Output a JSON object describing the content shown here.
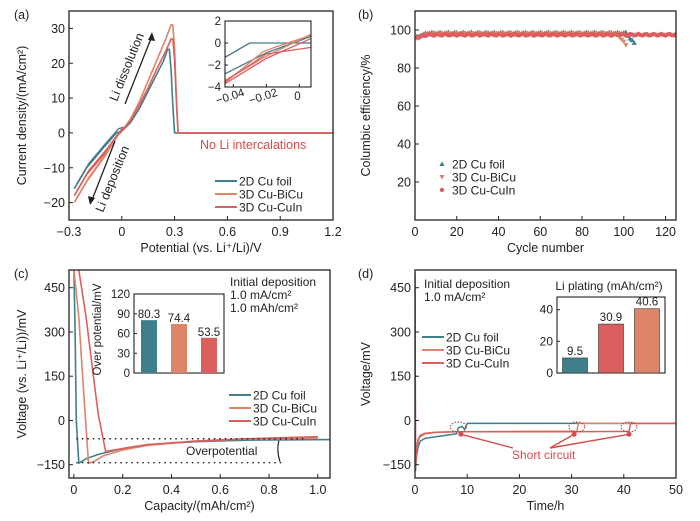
{
  "colors": {
    "cu_foil": "#3f7f8c",
    "bicu": "#de8468",
    "cuin": "#dc5f60",
    "text": "#222222",
    "annot_red": "#d94a4a"
  },
  "chart_data": [
    {
      "panel": "(a)",
      "type": "line",
      "xlabel": "Potential (vs. Li⁺/Li)/V",
      "ylabel": "Current density/(mA/cm²)",
      "xlim": [
        -0.3,
        1.2
      ],
      "ylim": [
        -25,
        35
      ],
      "xticks": [
        "−0.3",
        "0",
        "0.3",
        "0.6",
        "0.9",
        "1.2"
      ],
      "yticks": [
        "−20",
        "−10",
        "0",
        "10",
        "20",
        "30"
      ],
      "xtick_values": [
        -0.3,
        0,
        0.3,
        0.6,
        0.9,
        1.2
      ],
      "ytick_values": [
        -20,
        -10,
        0,
        10,
        20,
        30
      ],
      "annotations": [
        "Li dissolution",
        "Li deposition",
        "No Li intercalations"
      ],
      "legend": {
        "position": "bottom-right",
        "entries": [
          "2D Cu foil",
          "3D Cu-BiCu",
          "3D Cu-CuIn"
        ]
      },
      "series": [
        {
          "name": "2D Cu foil",
          "key": "cu_foil",
          "x": [
            -0.27,
            -0.2,
            -0.1,
            -0.03,
            0.0,
            0.05,
            0.1,
            0.15,
            0.2,
            0.24,
            0.26,
            0.27,
            0.28,
            0.29,
            0.3,
            0.5,
            1.2
          ],
          "y": [
            -16,
            -10,
            -4,
            0,
            0.5,
            3,
            7,
            12,
            17,
            21,
            24,
            24,
            18,
            8,
            0,
            0,
            0
          ]
        },
        {
          "name": "3D Cu-BiCu",
          "key": "bicu",
          "x": [
            -0.27,
            -0.2,
            -0.1,
            -0.02,
            0.0,
            0.05,
            0.1,
            0.15,
            0.2,
            0.25,
            0.28,
            0.29,
            0.3,
            0.31,
            0.32,
            0.5,
            1.2
          ],
          "y": [
            -20,
            -14,
            -7,
            -0.5,
            0.5,
            4,
            9,
            15,
            21,
            27,
            31,
            31,
            24,
            10,
            0,
            0,
            0
          ]
        },
        {
          "name": "3D Cu-CuIn",
          "key": "cuin",
          "x": [
            -0.27,
            -0.2,
            -0.1,
            -0.02,
            0.0,
            0.05,
            0.1,
            0.15,
            0.2,
            0.25,
            0.28,
            0.29,
            0.3,
            0.31,
            0.32,
            0.5,
            1.2
          ],
          "y": [
            -18,
            -12,
            -6,
            -0.5,
            0.5,
            3.5,
            8,
            13,
            18.5,
            23.5,
            27,
            27,
            21,
            9,
            0,
            0,
            0
          ]
        }
      ],
      "inset": {
        "type": "line",
        "xlim": [
          -0.045,
          0.007
        ],
        "ylim": [
          -4,
          2
        ],
        "xticks": [
          "−0.04",
          "−0.02",
          "0"
        ],
        "xtick_values": [
          -0.04,
          -0.02,
          0
        ],
        "yticks": [
          "−4",
          "−2",
          "0",
          "2"
        ],
        "ytick_values": [
          -4,
          -2,
          0,
          2
        ],
        "series": [
          {
            "key": "cu_foil",
            "x": [
              -0.045,
              -0.03,
              0.007
            ],
            "y": [
              -1.3,
              0,
              0
            ]
          },
          {
            "key": "cu_foil",
            "x": [
              -0.045,
              -0.02,
              0.007
            ],
            "y": [
              -2.8,
              -0.9,
              0.6
            ]
          },
          {
            "key": "bicu",
            "x": [
              -0.045,
              -0.02,
              0.007
            ],
            "y": [
              -3.4,
              -1.2,
              0.8
            ]
          },
          {
            "key": "bicu",
            "x": [
              -0.045,
              -0.022,
              -0.015,
              0.007
            ],
            "y": [
              -3.6,
              -0.8,
              -0.4,
              0.7
            ]
          },
          {
            "key": "cuin",
            "x": [
              -0.045,
              -0.02,
              0.007
            ],
            "y": [
              -3.7,
              -1.4,
              0.4
            ]
          },
          {
            "key": "cuin",
            "x": [
              -0.045,
              -0.02,
              0.007
            ],
            "y": [
              -3.5,
              -1.0,
              -0.4
            ]
          }
        ]
      }
    },
    {
      "panel": "(b)",
      "type": "scatter",
      "xlabel": "Cycle number",
      "ylabel": "Columbic efficiency/%",
      "xlim": [
        0,
        125
      ],
      "ylim": [
        0,
        110
      ],
      "xticks": [
        "0",
        "20",
        "40",
        "60",
        "80",
        "100",
        "120"
      ],
      "xtick_values": [
        0,
        20,
        40,
        60,
        80,
        100,
        120
      ],
      "yticks": [
        "20",
        "40",
        "60",
        "80",
        "100"
      ],
      "ytick_values": [
        20,
        40,
        60,
        80,
        100
      ],
      "legend": {
        "position": "bottom-left",
        "entries": [
          "2D Cu foil",
          "3D Cu-BiCu",
          "3D Cu-CuIn"
        ],
        "markers": [
          "triangle-up",
          "triangle-down",
          "star"
        ]
      },
      "series": [
        {
          "name": "2D Cu foil",
          "key": "cu_foil",
          "marker": "triangle-up",
          "cycles": [
            1,
            105
          ],
          "ce_typical": 98.5,
          "ce_start": 96,
          "ce_end": 93
        },
        {
          "name": "3D Cu-BiCu",
          "key": "bicu",
          "marker": "triangle-down",
          "cycles": [
            1,
            101
          ],
          "ce_typical": 98,
          "ce_start": 95,
          "ce_end": 92
        },
        {
          "name": "3D Cu-CuIn",
          "key": "cuin",
          "marker": "star",
          "cycles": [
            1,
            125
          ],
          "ce_typical": 97.5,
          "ce_start": 96,
          "ce_end": 96.5
        }
      ]
    },
    {
      "panel": "(c)",
      "type": "line",
      "xlabel": "Capacity/(mAh/cm²)",
      "ylabel": "Voltage (vs. Li⁺/Li))/mV",
      "xlim": [
        -0.02,
        1.05
      ],
      "ylim": [
        -195,
        510
      ],
      "xticks": [
        "0",
        "0.2",
        "0.4",
        "0.6",
        "0.8",
        "1.0"
      ],
      "xtick_values": [
        0,
        0.2,
        0.4,
        0.6,
        0.8,
        1.0
      ],
      "yticks": [
        "−150",
        "0",
        "150",
        "300",
        "450"
      ],
      "ytick_values": [
        -150,
        0,
        150,
        300,
        450
      ],
      "annotations": [
        "Initial deposition",
        "1.0 mA/cm²",
        "1.0 mAh/cm²",
        "Overpotential"
      ],
      "legend": {
        "position": "center-right",
        "entries": [
          "2D Cu foil",
          "3D Cu-BiCu",
          "3D Cu-CuIn"
        ]
      },
      "series": [
        {
          "name": "2D Cu foil",
          "key": "cu_foil",
          "x": [
            0.0,
            0.005,
            0.01,
            0.02,
            0.05,
            0.1,
            0.2,
            0.3,
            0.5,
            0.7,
            1.05
          ],
          "y": [
            510,
            300,
            0,
            -145,
            -130,
            -115,
            -95,
            -82,
            -72,
            -67,
            -65
          ]
        },
        {
          "name": "3D Cu-BiCu",
          "key": "bicu",
          "x": [
            0.0,
            0.02,
            0.04,
            0.06,
            0.08,
            0.12,
            0.2,
            0.3,
            0.5,
            0.7,
            1.0
          ],
          "y": [
            510,
            350,
            100,
            -145,
            -140,
            -120,
            -100,
            -85,
            -70,
            -63,
            -60
          ]
        },
        {
          "name": "3D Cu-CuIn",
          "key": "cuin",
          "x": [
            0.02,
            0.05,
            0.08,
            0.1,
            0.13,
            0.2,
            0.3,
            0.5,
            0.7,
            1.0
          ],
          "y": [
            510,
            350,
            150,
            20,
            -105,
            -95,
            -82,
            -70,
            -62,
            -55
          ]
        }
      ],
      "overpotential_levels": [
        -62,
        -143
      ],
      "inset": {
        "type": "bar",
        "ylabel": "Over potential/mV",
        "ylim": [
          0,
          120
        ],
        "yticks": [
          "0",
          "30",
          "60",
          "90",
          "120"
        ],
        "ytick_values": [
          0,
          30,
          60,
          90,
          120
        ],
        "categories": [
          "2D Cu foil",
          "3D Cu-BiCu",
          "3D Cu-CuIn"
        ],
        "values": [
          80.3,
          74.4,
          53.5
        ],
        "labels": [
          "80.3",
          "74.4",
          "53.5"
        ],
        "keys": [
          "cu_foil",
          "bicu",
          "cuin"
        ]
      }
    },
    {
      "panel": "(d)",
      "type": "line",
      "xlabel": "Time/h",
      "ylabel": "Voltage/mV",
      "xlim": [
        0,
        50
      ],
      "ylim": [
        -195,
        510
      ],
      "xticks": [
        "0",
        "10",
        "20",
        "30",
        "40",
        "50"
      ],
      "xtick_values": [
        0,
        10,
        20,
        30,
        40,
        50
      ],
      "yticks": [
        "−150",
        "0",
        "150",
        "300",
        "450"
      ],
      "ytick_values": [
        -150,
        0,
        150,
        300,
        450
      ],
      "annotations": [
        "Initial deposition",
        "1.0 mA/cm²",
        "Short circuit"
      ],
      "short_circuit_times": [
        8.3,
        31,
        41
      ],
      "legend": {
        "position": "top-left",
        "entries": [
          "2D Cu foil",
          "3D Cu-BiCu",
          "3D Cu-CuIn"
        ]
      },
      "series": [
        {
          "name": "2D Cu foil",
          "key": "cu_foil",
          "x": [
            0,
            0.1,
            0.3,
            0.6,
            1,
            2,
            4,
            6,
            8,
            8.3,
            9,
            9.5,
            10,
            50
          ],
          "y": [
            450,
            -170,
            -120,
            -90,
            -70,
            -60,
            -55,
            -50,
            -45,
            -25,
            -20,
            -30,
            -10,
            -10
          ]
        },
        {
          "name": "3D Cu-BiCu",
          "key": "bicu",
          "x": [
            0,
            0.1,
            0.3,
            0.6,
            1,
            2,
            4,
            8,
            20,
            31,
            31.3,
            50
          ],
          "y": [
            500,
            -160,
            -100,
            -70,
            -55,
            -45,
            -40,
            -38,
            -37,
            -36,
            -10,
            -10
          ]
        },
        {
          "name": "3D Cu-CuIn",
          "key": "cuin",
          "x": [
            0,
            0.1,
            0.3,
            0.6,
            1,
            2,
            4,
            8,
            20,
            30,
            41,
            41.3,
            50
          ],
          "y": [
            500,
            -150,
            -90,
            -65,
            -50,
            -43,
            -40,
            -38,
            -38,
            -38,
            -37,
            -10,
            -10
          ]
        }
      ],
      "inset": {
        "type": "bar",
        "title": "Li plating (mAh/cm²)",
        "ylim": [
          0,
          48
        ],
        "yticks": [
          "0",
          "20",
          "40"
        ],
        "ytick_values": [
          0,
          20,
          40
        ],
        "categories": [
          "2D Cu foil",
          "3D Cu-CuIn",
          "3D Cu-BiCu"
        ],
        "values": [
          9.5,
          30.9,
          40.6
        ],
        "labels": [
          "9.5",
          "30.9",
          "40.6"
        ],
        "keys": [
          "cu_foil",
          "cuin",
          "bicu"
        ]
      }
    }
  ]
}
